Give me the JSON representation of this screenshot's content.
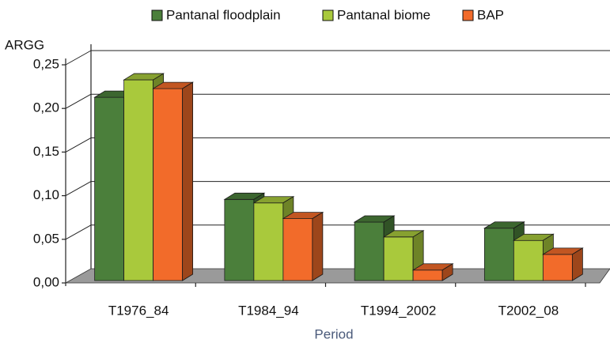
{
  "chart_data": {
    "type": "bar3d",
    "y_label": "ARGG",
    "x_label": "Period",
    "categories": [
      "T1976_84",
      "T1984_94",
      "T1994_2002",
      "T2002_08"
    ],
    "series": [
      {
        "name": "Pantanal floodplain",
        "color": "#4b7f3b",
        "values": [
          0.21,
          0.093,
          0.067,
          0.06
        ]
      },
      {
        "name": "Pantanal biome",
        "color": "#a9c93c",
        "values": [
          0.23,
          0.089,
          0.05,
          0.046
        ]
      },
      {
        "name": "BAP",
        "color": "#f26b2a",
        "values": [
          0.22,
          0.071,
          0.012,
          0.03
        ]
      }
    ],
    "ylim": [
      0,
      0.25
    ],
    "yticks": [
      {
        "value": 0,
        "label": "0,00"
      },
      {
        "value": 0.05,
        "label": "0,05"
      },
      {
        "value": 0.1,
        "label": "0,10"
      },
      {
        "value": 0.15,
        "label": "0,15"
      },
      {
        "value": 0.2,
        "label": "0,20"
      },
      {
        "value": 0.25,
        "label": "0,25"
      }
    ],
    "grid": true,
    "legend": "top"
  }
}
